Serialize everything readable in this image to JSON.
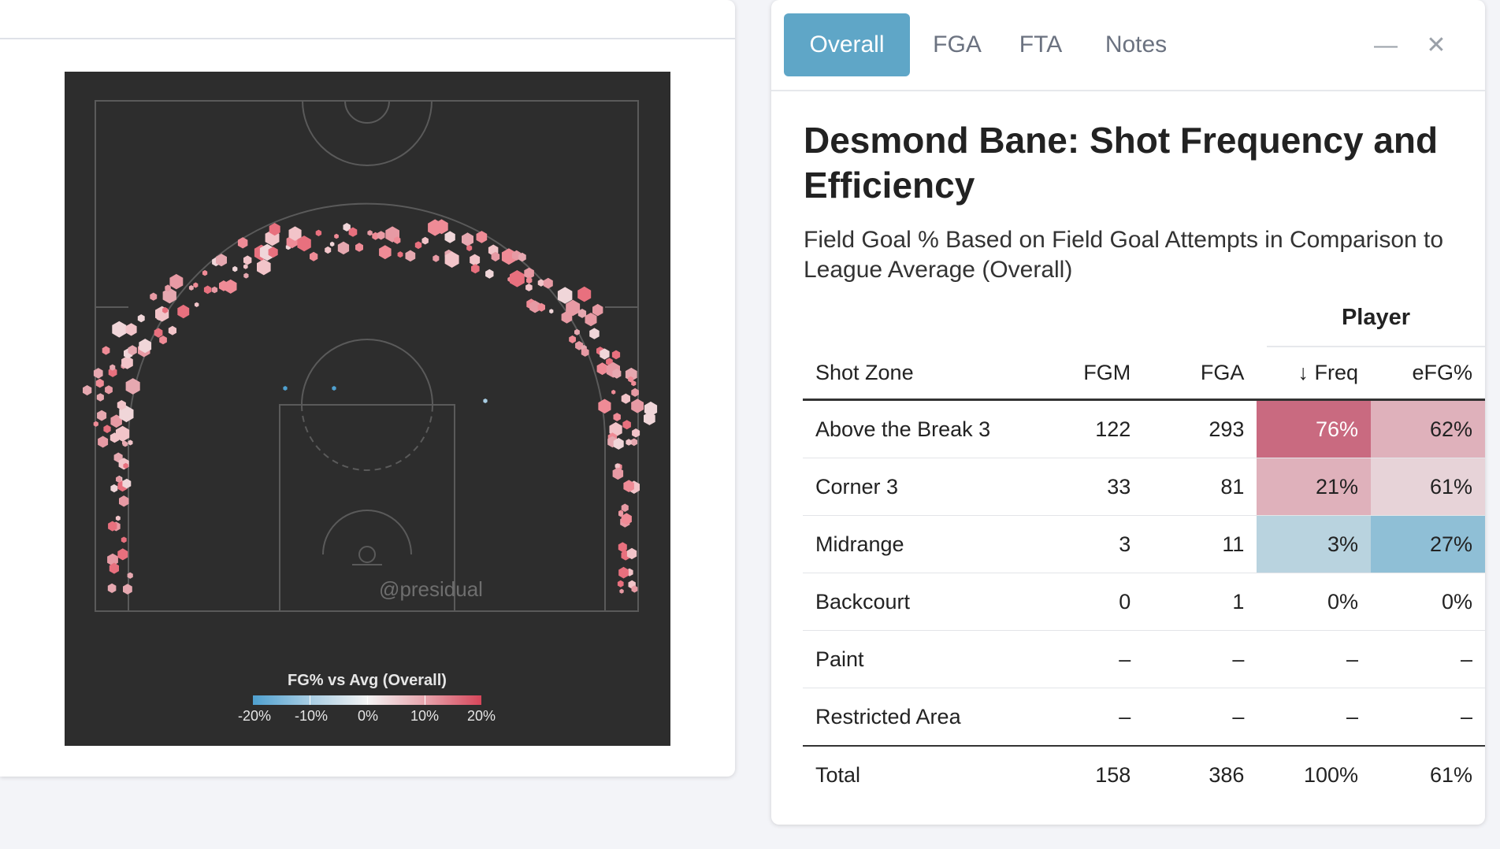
{
  "chart": {
    "watermark": "@presidual",
    "legend_title": "FG% vs Avg (Overall)",
    "legend_labels": [
      "-20%",
      "-10%",
      "0%",
      "10%",
      "20%"
    ]
  },
  "tabs": [
    {
      "label": "Overall",
      "active": true
    },
    {
      "label": "FGA",
      "active": false
    },
    {
      "label": "FTA",
      "active": false
    },
    {
      "label": "Notes",
      "active": false
    }
  ],
  "window": {
    "minimize_icon": "minus-icon",
    "close_icon": "close-icon",
    "minimize_glyph": "—",
    "close_glyph": "✕"
  },
  "title": "Desmond Bane: Shot Frequency and Efficiency",
  "subtitle": "Field Goal % Based on Field Goal Attempts in Comparison to League Average (Overall)",
  "table": {
    "group_header": "Player",
    "headers": {
      "zone": "Shot Zone",
      "fgm": "FGM",
      "fga": "FGA",
      "freq": "↓ Freq",
      "efg": "eFG%"
    },
    "rows": [
      {
        "zone": "Above the Break 3",
        "fgm": "122",
        "fga": "293",
        "freq": "76%",
        "efg": "62%"
      },
      {
        "zone": "Corner 3",
        "fgm": "33",
        "fga": "81",
        "freq": "21%",
        "efg": "61%"
      },
      {
        "zone": "Midrange",
        "fgm": "3",
        "fga": "11",
        "freq": "3%",
        "efg": "27%"
      },
      {
        "zone": "Backcourt",
        "fgm": "0",
        "fga": "1",
        "freq": "0%",
        "efg": "0%"
      },
      {
        "zone": "Paint",
        "fgm": "–",
        "fga": "–",
        "freq": "–",
        "efg": "–"
      },
      {
        "zone": "Restricted Area",
        "fgm": "–",
        "fga": "–",
        "freq": "–",
        "efg": "–"
      }
    ],
    "total": {
      "zone": "Total",
      "fgm": "158",
      "fga": "386",
      "freq": "100%",
      "efg": "61%"
    }
  },
  "colors": {
    "accent_tab": "#5fa6c7",
    "chart_bg": "#2d2d2d",
    "scale_low": "#4fa0cf",
    "scale_mid": "#f4f4f4",
    "scale_high": "#d6465a"
  }
}
